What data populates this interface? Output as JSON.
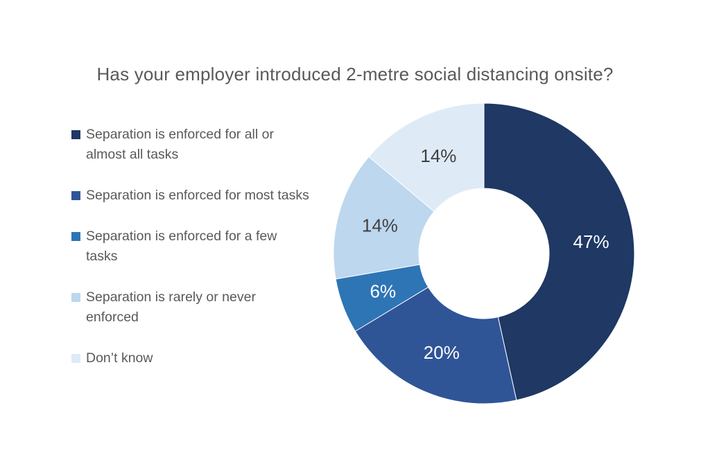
{
  "chart_data": {
    "type": "pie",
    "subtype": "donut",
    "title": "Has your employer introduced 2-metre social distancing onsite?",
    "legend_position": "left",
    "start_angle_deg": 0,
    "direction": "clockwise",
    "label_format": "percent",
    "slices": [
      {
        "label": "Separation is enforced for all or almost all tasks",
        "value": 47,
        "display": "47%",
        "color": "#1F3864",
        "label_color": "#FFFFFF"
      },
      {
        "label": "Separation is enforced for most tasks",
        "value": 20,
        "display": "20%",
        "color": "#2F5597",
        "label_color": "#FFFFFF"
      },
      {
        "label": "Separation is enforced for a few tasks",
        "value": 6,
        "display": "6%",
        "color": "#2E75B6",
        "label_color": "#FFFFFF"
      },
      {
        "label": "Separation is rarely or never enforced",
        "value": 14,
        "display": "14%",
        "color": "#BDD7EE",
        "label_color": "#404040"
      },
      {
        "label": "Don’t know",
        "value": 14,
        "display": "14%",
        "color": "#DEEBF7",
        "label_color": "#404040"
      }
    ],
    "colors": {
      "background": "#FFFFFF",
      "title_text": "#595959",
      "legend_text": "#595959",
      "slice_border": "#FFFFFF",
      "hole_fill": "#FFFFFF"
    }
  }
}
